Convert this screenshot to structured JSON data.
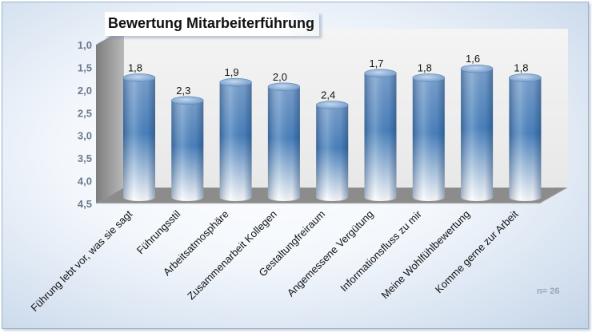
{
  "chart_data": {
    "type": "bar",
    "title": "Bewertung Mitarbeiterführung",
    "categories": [
      "Führung lebt vor, was sie sagt",
      "Führungsstil",
      "Arbeitsatmosphäre",
      "Zusammenarbeit Kollegen",
      "Gestaltungfreiraum",
      "Angemessene Vergütung",
      "Informationsfluss zu mir",
      "Meine Wohlfühlbewertung",
      "Komme gerne zur Arbeit"
    ],
    "values": [
      1.8,
      2.3,
      1.9,
      2.0,
      2.4,
      1.7,
      1.8,
      1.6,
      1.8
    ],
    "value_labels": [
      "1,8",
      "2,3",
      "1,9",
      "2,0",
      "2,4",
      "1,7",
      "1,8",
      "1,6",
      "1,8"
    ],
    "ylim": [
      1.0,
      4.5
    ],
    "y_inverted": true,
    "y_ticks": [
      "1,0",
      "1,5",
      "2,0",
      "2,5",
      "3,0",
      "3,5",
      "4,0",
      "4,5"
    ],
    "y_tick_values": [
      1.0,
      1.5,
      2.0,
      2.5,
      3.0,
      3.5,
      4.0,
      4.5
    ],
    "grid": false,
    "legend": "none",
    "style": "3d-cylinder",
    "colors": {
      "bar_top": "#4a82bd",
      "bar_bottom": "#ffffff",
      "floor": "#8c8c8c",
      "wall": "#e8e8e8"
    }
  },
  "note": "n= 26"
}
